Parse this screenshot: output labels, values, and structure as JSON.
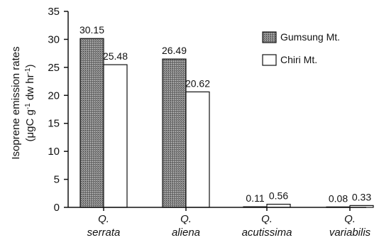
{
  "chart_data": {
    "type": "bar",
    "title": "",
    "xlabel": "",
    "ylabel_line1": "Isoprene emission rates",
    "ylabel_line2_parts": [
      "(μgC g",
      "-1",
      " dw hr",
      "-1",
      ")"
    ],
    "ylim": [
      0,
      35
    ],
    "yticks": [
      "0",
      "5",
      "10",
      "15",
      "20",
      "25",
      "30",
      "35"
    ],
    "categories": [
      {
        "line1": "Q.",
        "line2": "serrata"
      },
      {
        "line1": "Q.",
        "line2": "aliena"
      },
      {
        "line1": "Q.",
        "line2": "acutissima"
      },
      {
        "line1": "Q.",
        "line2": "variabilis"
      }
    ],
    "series": [
      {
        "name": "Gumsung Mt.",
        "values": [
          30.15,
          26.49,
          0.11,
          0.08
        ],
        "labels": [
          "30.15",
          "26.49",
          "0.11",
          "0.08"
        ],
        "fill": "#7a7a7a"
      },
      {
        "name": "Chiri Mt.",
        "values": [
          25.48,
          20.62,
          0.56,
          0.33
        ],
        "labels": [
          "25.48",
          "20.62",
          "0.56",
          "0.33"
        ],
        "fill": "#ffffff"
      }
    ],
    "legend_position": "top-right",
    "grid": false
  }
}
